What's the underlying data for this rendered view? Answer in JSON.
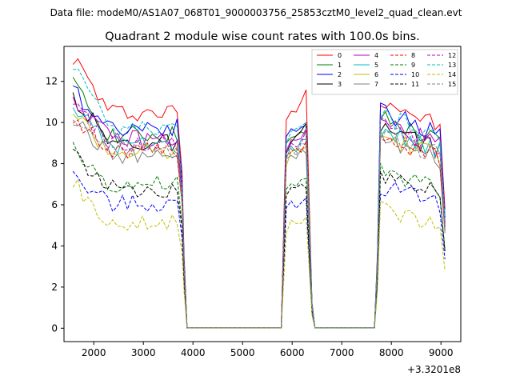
{
  "header": {
    "data_file": "Data file: modeM0/AS1A07_068T01_9000003756_25853cztM0_level2_quad_clean.evt"
  },
  "chart_data": {
    "type": "line",
    "title": "Quadrant 2 module wise count rates with 100.0s bins.",
    "xlabel": "",
    "ylabel": "",
    "x_offset_label": "+3.3201e8",
    "xlim": [
      1400,
      9400
    ],
    "ylim": [
      -0.65,
      13.7
    ],
    "xticks": [
      2000,
      3000,
      4000,
      5000,
      6000,
      7000,
      8000,
      9000
    ],
    "yticks": [
      0,
      2,
      4,
      6,
      8,
      10,
      12
    ],
    "xtick_labels": [
      "2000",
      "3000",
      "4000",
      "5000",
      "6000",
      "7000",
      "8000",
      "9000"
    ],
    "ytick_labels": [
      "0",
      "2",
      "4",
      "6",
      "8",
      "10",
      "12"
    ],
    "legend_position": "top-right",
    "segments": [
      {
        "start": 1580,
        "end": 3780
      },
      {
        "start": 5880,
        "end": 6360
      },
      {
        "start": 7780,
        "end": 9080
      }
    ],
    "gap_x": [
      3880,
      3980,
      4080,
      4180,
      4280,
      4380,
      4480,
      4580,
      4680,
      4780,
      4880,
      4980,
      5080,
      5180,
      5280,
      5380,
      5480,
      5580,
      5680,
      5780,
      6460,
      6560,
      6660,
      6760,
      6860,
      6960,
      7060,
      7160,
      7260,
      7360,
      7460,
      7560,
      7660
    ],
    "series": [
      {
        "name": "0",
        "color": "#ff0000",
        "dash": "solid",
        "level": 10.5,
        "start": 13.2,
        "mid": 11.8,
        "end": 9.6
      },
      {
        "name": "1",
        "color": "#008000",
        "dash": "solid",
        "level": 9.4,
        "start": 11.8,
        "mid": 9.6,
        "end": 8.9
      },
      {
        "name": "2",
        "color": "#0000ff",
        "dash": "solid",
        "level": 9.8,
        "start": 11.5,
        "mid": 10.2,
        "end": 9.3
      },
      {
        "name": "3",
        "color": "#000000",
        "dash": "solid",
        "level": 9.0,
        "start": 11.3,
        "mid": 9.9,
        "end": 8.6
      },
      {
        "name": "4",
        "color": "#bf00bf",
        "dash": "solid",
        "level": 9.2,
        "start": 11.2,
        "mid": 9.7,
        "end": 8.8
      },
      {
        "name": "5",
        "color": "#00bfbf",
        "dash": "solid",
        "level": 8.9,
        "start": 10.8,
        "mid": 9.3,
        "end": 8.5
      },
      {
        "name": "6",
        "color": "#bfbf00",
        "dash": "solid",
        "level": 8.6,
        "start": 10.6,
        "mid": 9.1,
        "end": 8.3
      },
      {
        "name": "7",
        "color": "#808080",
        "dash": "solid",
        "level": 8.4,
        "start": 10.2,
        "mid": 8.9,
        "end": 8.1
      },
      {
        "name": "8",
        "color": "#ff0000",
        "dash": "dashed",
        "level": 8.6,
        "start": 10.4,
        "mid": 9.0,
        "end": 8.2
      },
      {
        "name": "9",
        "color": "#008000",
        "dash": "dashed",
        "level": 7.0,
        "start": 8.7,
        "mid": 7.3,
        "end": 6.6
      },
      {
        "name": "10",
        "color": "#0000ff",
        "dash": "dashed",
        "level": 6.1,
        "start": 7.4,
        "mid": 6.5,
        "end": 5.8
      },
      {
        "name": "11",
        "color": "#000000",
        "dash": "dashed",
        "level": 6.8,
        "start": 8.6,
        "mid": 7.1,
        "end": 6.5
      },
      {
        "name": "12",
        "color": "#bf00bf",
        "dash": "dashed",
        "level": 9.0,
        "start": 10.9,
        "mid": 9.5,
        "end": 8.6
      },
      {
        "name": "13",
        "color": "#00bfbf",
        "dash": "dashed",
        "level": 9.6,
        "start": 12.7,
        "mid": 10.0,
        "end": 9.1
      },
      {
        "name": "14",
        "color": "#bfbf00",
        "dash": "dashed",
        "level": 5.1,
        "start": 7.1,
        "mid": 5.5,
        "end": 4.9
      },
      {
        "name": "15",
        "color": "#808080",
        "dash": "dashed",
        "level": 8.7,
        "start": 10.5,
        "mid": 9.2,
        "end": 8.4
      }
    ]
  }
}
